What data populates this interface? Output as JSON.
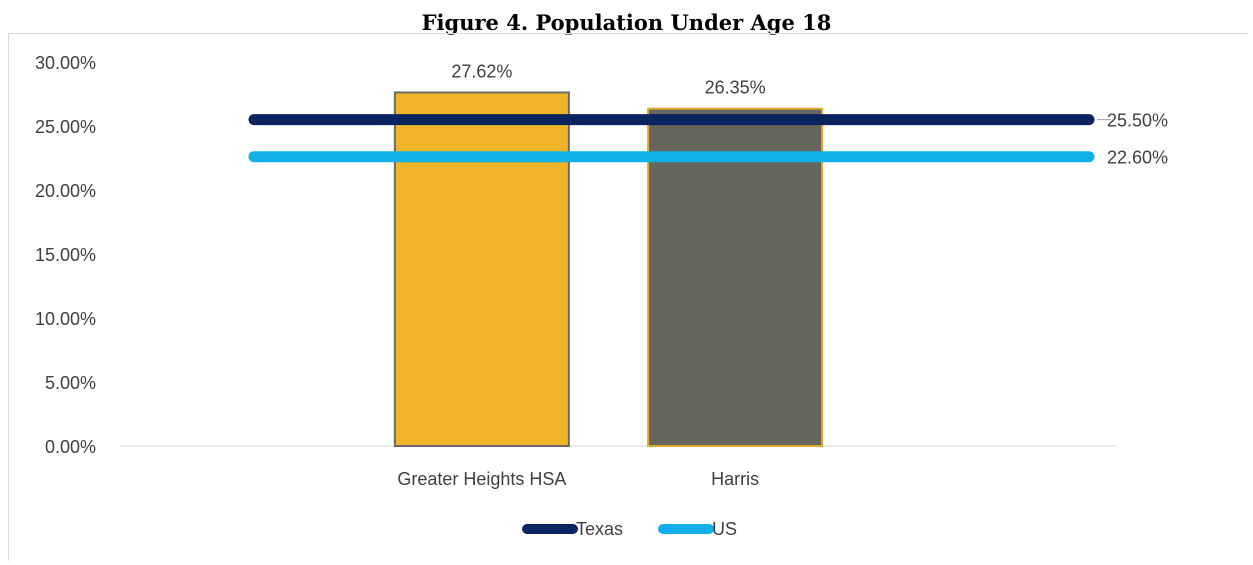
{
  "chart_data": {
    "type": "bar",
    "title": "Figure 4.  Population Under Age 18",
    "categories": [
      "Greater Heights HSA",
      "Harris"
    ],
    "series": [
      {
        "values": [
          27.62,
          26.35
        ],
        "data_labels": [
          "27.62%",
          "26.35%"
        ],
        "colors": [
          "#f0b429",
          "#66665c"
        ],
        "edge_colors": [
          "#6a6a6a",
          "#e0a82e"
        ]
      }
    ],
    "reference_lines": [
      {
        "name": "Texas",
        "value": 25.5,
        "label": "25.50%",
        "color": "#0b2460"
      },
      {
        "name": "US",
        "value": 22.6,
        "label": "22.60%",
        "color": "#12b0ea"
      }
    ],
    "y_ticks": [
      "0.00%",
      "5.00%",
      "10.00%",
      "15.00%",
      "20.00%",
      "25.00%",
      "30.00%"
    ],
    "ylim": [
      0,
      30
    ],
    "xlabel": "",
    "ylabel": "",
    "grid": false,
    "legend_position": "bottom"
  }
}
